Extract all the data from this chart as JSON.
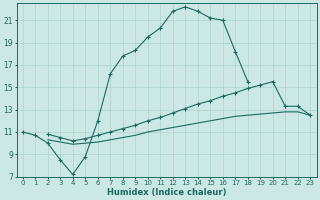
{
  "xlabel": "Humidex (Indice chaleur)",
  "bg_color": "#cce8e4",
  "grid_color": "#aad4cc",
  "line_color": "#1a6a60",
  "xlim": [
    -0.5,
    23.5
  ],
  "ylim": [
    7,
    22.5
  ],
  "yticks": [
    7,
    9,
    11,
    13,
    15,
    17,
    19,
    21
  ],
  "xticks": [
    0,
    1,
    2,
    3,
    4,
    5,
    6,
    7,
    8,
    9,
    10,
    11,
    12,
    13,
    14,
    15,
    16,
    17,
    18,
    19,
    20,
    21,
    22,
    23
  ],
  "line1_x": [
    0,
    1,
    2,
    3,
    4,
    5,
    6,
    7,
    8,
    9,
    10,
    11,
    12,
    13,
    14,
    15,
    16,
    17,
    18
  ],
  "line1_y": [
    11,
    10.7,
    10.0,
    8.5,
    7.2,
    8.8,
    12.0,
    16.2,
    17.8,
    18.3,
    19.5,
    20.3,
    21.8,
    22.2,
    21.8,
    21.2,
    21.0,
    18.2,
    15.5
  ],
  "line2_x": [
    2,
    3,
    4,
    5,
    6,
    7,
    8,
    9,
    10,
    11,
    12,
    13,
    14,
    15,
    16,
    17,
    18,
    19,
    20,
    21,
    22,
    23
  ],
  "line2_y": [
    10.8,
    10.5,
    10.2,
    10.4,
    10.7,
    11.0,
    11.3,
    11.6,
    12.0,
    12.3,
    12.7,
    13.1,
    13.5,
    13.8,
    14.2,
    14.5,
    14.9,
    15.2,
    15.5,
    13.3,
    13.3,
    12.5
  ],
  "line3_x": [
    2,
    3,
    4,
    5,
    6,
    7,
    8,
    9,
    10,
    11,
    12,
    13,
    14,
    15,
    16,
    17,
    18,
    19,
    20,
    21,
    22,
    23
  ],
  "line3_y": [
    10.3,
    10.1,
    9.9,
    10.0,
    10.1,
    10.3,
    10.5,
    10.7,
    11.0,
    11.2,
    11.4,
    11.6,
    11.8,
    12.0,
    12.2,
    12.4,
    12.5,
    12.6,
    12.7,
    12.8,
    12.8,
    12.5
  ]
}
